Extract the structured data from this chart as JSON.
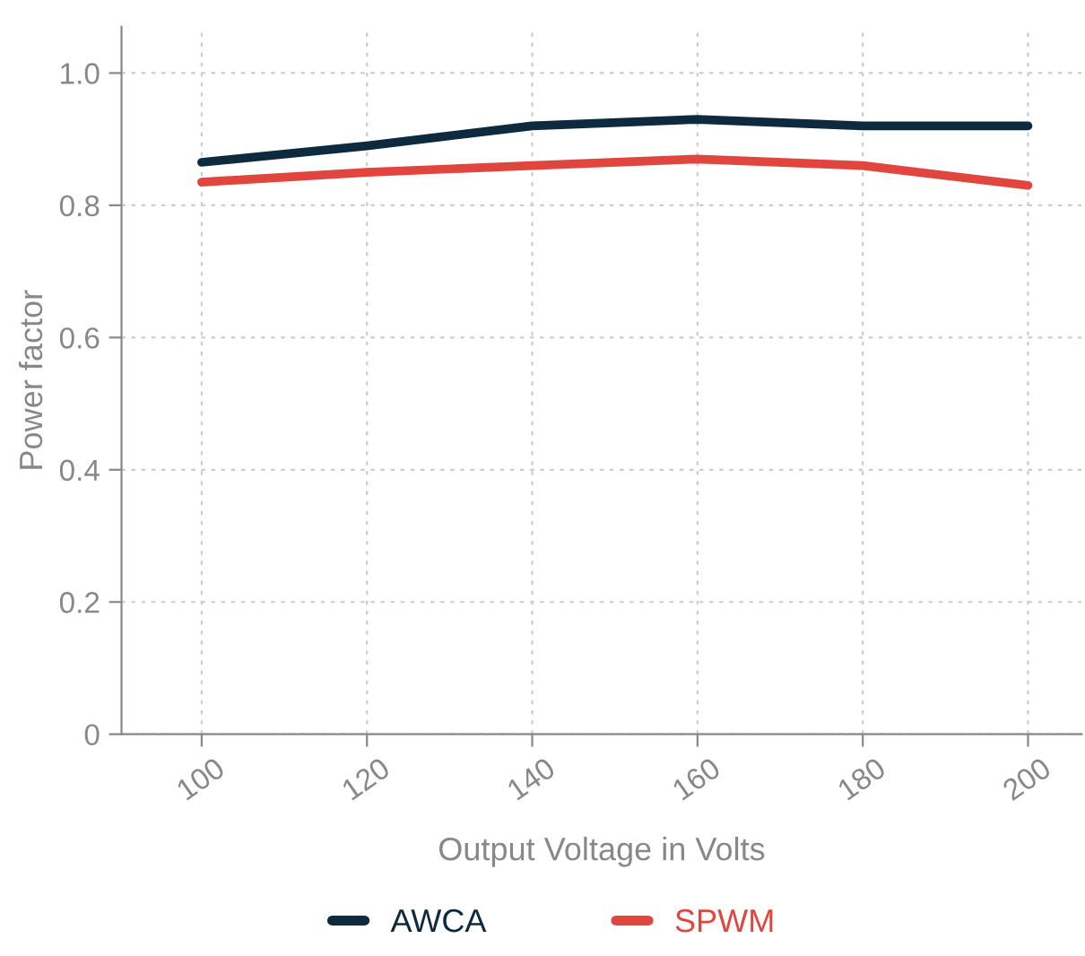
{
  "chart_data": {
    "type": "line",
    "xlabel": "Output Voltage in Volts",
    "ylabel": "Power factor",
    "x": [
      100,
      120,
      140,
      160,
      180,
      200
    ],
    "series": [
      {
        "name": "AWCA",
        "color": "#0d2a3f",
        "values": [
          0.865,
          0.89,
          0.92,
          0.93,
          0.92,
          0.92
        ]
      },
      {
        "name": "SPWM",
        "color": "#e0463e",
        "values": [
          0.835,
          0.85,
          0.86,
          0.87,
          0.86,
          0.83
        ]
      }
    ],
    "xlim": [
      90.3,
      206.5
    ],
    "xticks": [
      100,
      120,
      140,
      160,
      180,
      200
    ],
    "ylim": [
      0,
      1.07
    ],
    "yticks": [
      {
        "value": 0,
        "label": "0"
      },
      0.2,
      0.4,
      0.6,
      0.8,
      {
        "value": 1.0,
        "label": "1.0"
      }
    ],
    "grid": true,
    "legend": "bottom",
    "marker": "none",
    "line_style": "solid"
  }
}
